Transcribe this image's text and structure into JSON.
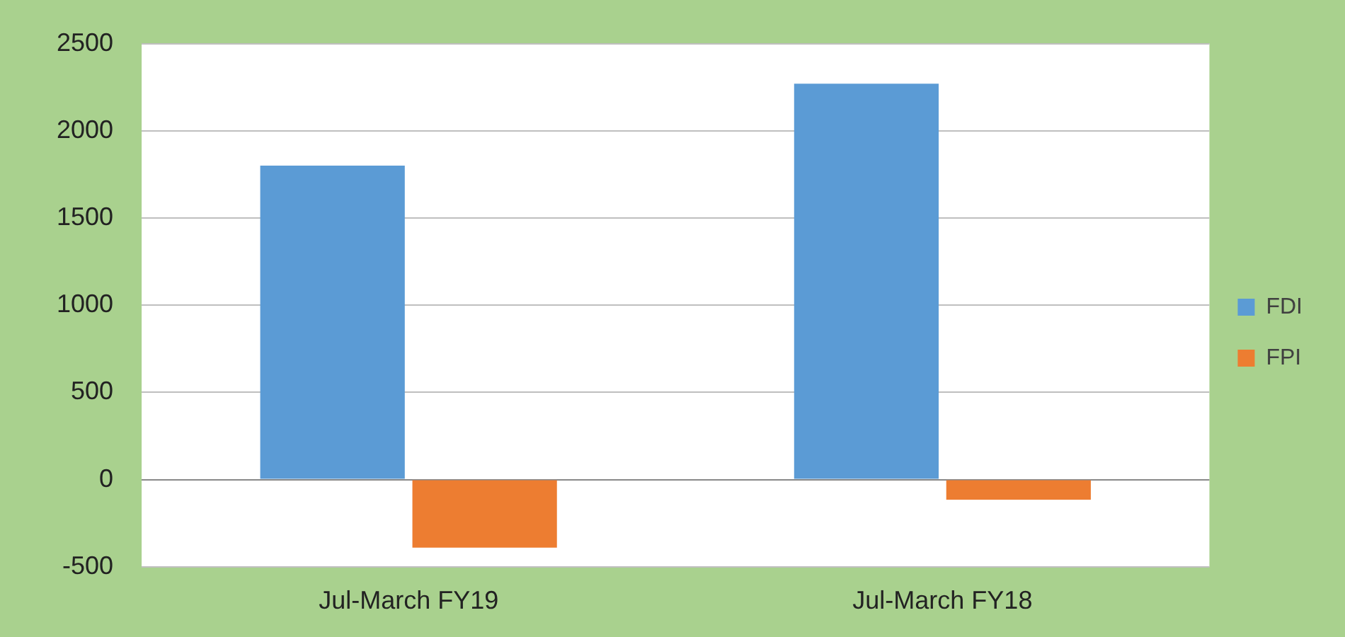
{
  "chart_data": {
    "type": "bar",
    "categories": [
      "Jul-March FY19",
      "Jul-March FY18"
    ],
    "series": [
      {
        "name": "FDI",
        "color": "#5b9bd5",
        "values": [
          1800,
          2270
        ]
      },
      {
        "name": "FPI",
        "color": "#ed7d31",
        "values": [
          -390,
          -115
        ]
      }
    ],
    "ylim": [
      -500,
      2500
    ],
    "yticks": [
      -500,
      0,
      500,
      1000,
      1500,
      2000,
      2500
    ],
    "grid": "y",
    "legend": "right"
  }
}
